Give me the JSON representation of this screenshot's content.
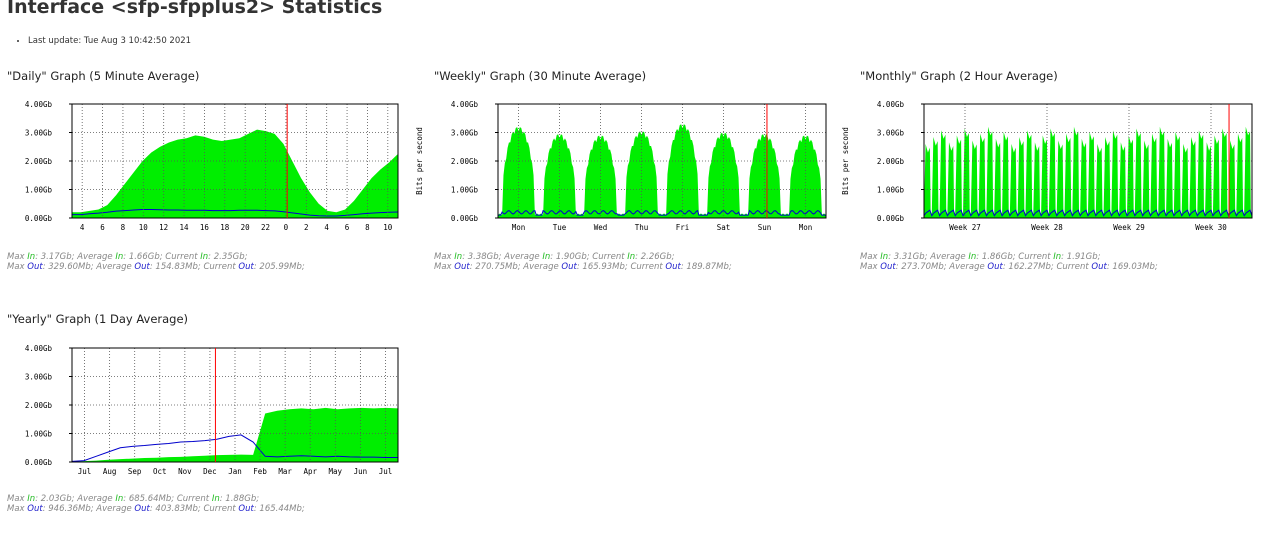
{
  "page": {
    "title": "Interface <sfp-sfpplus2> Statistics",
    "last_update": "Last update: Tue Aug 3 10:42:50 2021"
  },
  "colors": {
    "in": "#00ee00",
    "out": "#0000cc",
    "now": "#ff0000",
    "grid": "#555555",
    "bg": "#ffffff"
  },
  "graphs": [
    {
      "id": "daily",
      "title": "\"Daily\" Graph (5 Minute Average)",
      "ylabel": "",
      "stats_line1": [
        "Max ",
        "In",
        ": 3.17Gb; Average ",
        "In",
        ": 1.66Gb; Current ",
        "In",
        ": 2.35Gb;"
      ],
      "stats_line2": [
        "Max ",
        "Out",
        ": 329.60Mb; Average ",
        "Out",
        ": 154.83Mb; Current ",
        "Out",
        ": 205.99Mb;"
      ],
      "chart_data": {
        "type": "area",
        "yticks": [
          "0.00Gb",
          "1.00Gb",
          "2.00Gb",
          "3.00Gb",
          "4.00Gb"
        ],
        "ylim": [
          0,
          4
        ],
        "xticks": [
          "4",
          "6",
          "8",
          "10",
          "12",
          "14",
          "16",
          "18",
          "20",
          "22",
          "0",
          "2",
          "4",
          "6",
          "8",
          "10"
        ],
        "now_position": 0.66,
        "series": [
          {
            "name": "In",
            "values": [
              0.2,
              0.2,
              0.25,
              0.3,
              0.45,
              0.8,
              1.2,
              1.6,
              2.0,
              2.3,
              2.5,
              2.65,
              2.75,
              2.8,
              2.9,
              2.85,
              2.75,
              2.7,
              2.75,
              2.8,
              2.95,
              3.1,
              3.05,
              2.95,
              2.6,
              2.0,
              1.4,
              0.9,
              0.5,
              0.25,
              0.2,
              0.3,
              0.6,
              1.0,
              1.4,
              1.7,
              1.95,
              2.25
            ]
          },
          {
            "name": "Out",
            "values": [
              0.12,
              0.12,
              0.15,
              0.17,
              0.2,
              0.24,
              0.26,
              0.28,
              0.3,
              0.3,
              0.29,
              0.28,
              0.28,
              0.27,
              0.27,
              0.27,
              0.26,
              0.26,
              0.26,
              0.27,
              0.27,
              0.27,
              0.26,
              0.25,
              0.22,
              0.18,
              0.14,
              0.1,
              0.08,
              0.07,
              0.07,
              0.09,
              0.12,
              0.15,
              0.17,
              0.19,
              0.2,
              0.21
            ]
          }
        ]
      }
    },
    {
      "id": "weekly",
      "title": "\"Weekly\" Graph (30 Minute Average)",
      "ylabel": "Bits per second",
      "stats_line1": [
        "Max ",
        "In",
        ": 3.38Gb; Average ",
        "In",
        ": 1.90Gb; Current ",
        "In",
        ": 2.26Gb;"
      ],
      "stats_line2": [
        "Max ",
        "Out",
        ": 270.75Mb; Average ",
        "Out",
        ": 165.93Mb; Current ",
        "Out",
        ": 189.87Mb;"
      ],
      "chart_data": {
        "type": "area",
        "yticks": [
          "0.00Gb",
          "1.00Gb",
          "2.00Gb",
          "3.00Gb",
          "4.00Gb"
        ],
        "ylim": [
          0,
          4
        ],
        "xticks": [
          "Mon",
          "Tue",
          "Wed",
          "Thu",
          "Fri",
          "Sat",
          "Sun",
          "Mon"
        ],
        "now_position": 0.82,
        "daily_peaks": [
          3.2,
          2.95,
          2.9,
          3.05,
          3.3,
          3.0,
          2.95,
          2.9
        ],
        "series": [
          {
            "name": "In"
          },
          {
            "name": "Out",
            "level": 0.2
          }
        ]
      }
    },
    {
      "id": "monthly",
      "title": "\"Monthly\" Graph (2 Hour Average)",
      "ylabel": "Bits per second",
      "stats_line1": [
        "Max ",
        "In",
        ": 3.31Gb; Average ",
        "In",
        ": 1.86Gb; Current ",
        "In",
        ": 1.91Gb;"
      ],
      "stats_line2": [
        "Max ",
        "Out",
        ": 273.70Mb; Average ",
        "Out",
        ": 162.27Mb; Current ",
        "Out",
        ": 169.03Mb;"
      ],
      "chart_data": {
        "type": "area",
        "yticks": [
          "0.00Gb",
          "1.00Gb",
          "2.00Gb",
          "3.00Gb",
          "4.00Gb"
        ],
        "ylim": [
          0,
          4
        ],
        "xticks": [
          "Week 27",
          "Week 28",
          "Week 29",
          "Week 30"
        ],
        "now_position": 0.93,
        "peak_count": 42,
        "peak_level": [
          2.6,
          3.2
        ],
        "series": [
          {
            "name": "In"
          },
          {
            "name": "Out",
            "level": 0.2
          }
        ]
      }
    },
    {
      "id": "yearly",
      "title": "\"Yearly\" Graph (1 Day Average)",
      "ylabel": "",
      "stats_line1": [
        "Max ",
        "In",
        ": 2.03Gb; Average ",
        "In",
        ": 685.64Mb; Current ",
        "In",
        ": 1.88Gb;"
      ],
      "stats_line2": [
        "Max ",
        "Out",
        ": 946.36Mb; Average ",
        "Out",
        ": 403.83Mb; Current ",
        "Out",
        ": 165.44Mb;"
      ],
      "chart_data": {
        "type": "area",
        "yticks": [
          "0.00Gb",
          "1.00Gb",
          "2.00Gb",
          "3.00Gb",
          "4.00Gb"
        ],
        "ylim": [
          0,
          4
        ],
        "xticks": [
          "Jul",
          "Aug",
          "Sep",
          "Oct",
          "Nov",
          "Dec",
          "Jan",
          "Feb",
          "Mar",
          "Apr",
          "May",
          "Jun",
          "Jul"
        ],
        "now_position": 0.44,
        "series": [
          {
            "name": "In",
            "values": [
              0.02,
              0.03,
              0.05,
              0.08,
              0.1,
              0.12,
              0.14,
              0.15,
              0.17,
              0.18,
              0.2,
              0.22,
              0.24,
              0.25,
              0.26,
              0.25,
              1.7,
              1.8,
              1.85,
              1.88,
              1.85,
              1.9,
              1.85,
              1.88,
              1.9,
              1.88,
              1.9,
              1.88
            ]
          },
          {
            "name": "Out",
            "values": [
              0.02,
              0.05,
              0.2,
              0.35,
              0.5,
              0.55,
              0.58,
              0.62,
              0.65,
              0.7,
              0.72,
              0.75,
              0.8,
              0.9,
              0.95,
              0.7,
              0.2,
              0.18,
              0.2,
              0.22,
              0.2,
              0.18,
              0.2,
              0.18,
              0.17,
              0.17,
              0.16,
              0.16
            ]
          }
        ]
      }
    }
  ]
}
